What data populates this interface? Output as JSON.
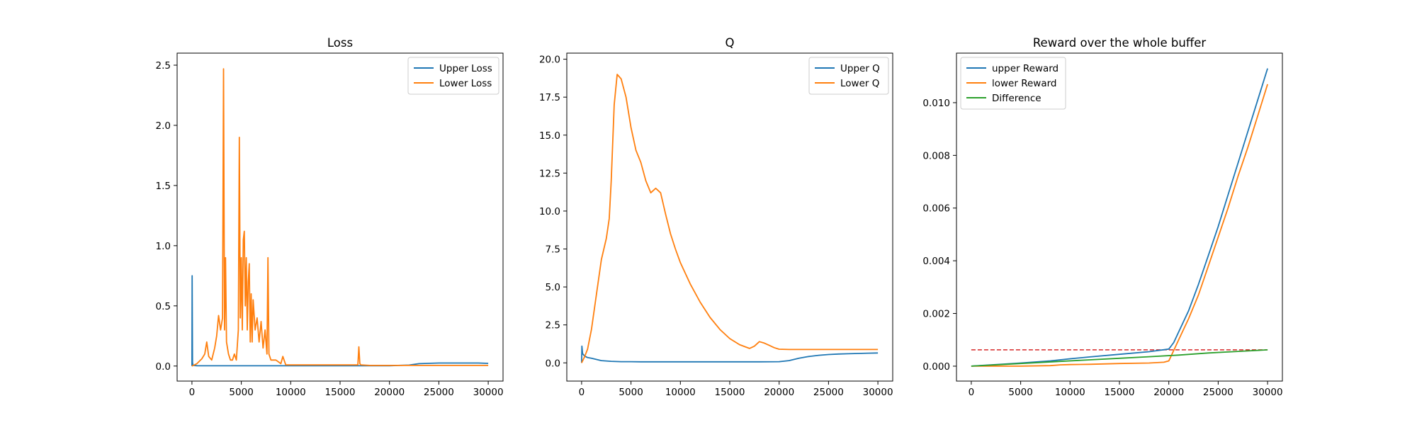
{
  "chart_data": [
    {
      "type": "line",
      "title": "Loss",
      "xlim": [
        -1500,
        31500
      ],
      "ylim": [
        -0.125,
        2.6
      ],
      "xticks": [
        0,
        5000,
        10000,
        15000,
        20000,
        25000,
        30000
      ],
      "yticks": [
        0.0,
        0.5,
        1.0,
        1.5,
        2.0,
        2.5
      ],
      "xtick_labels": [
        "0",
        "5000",
        "10000",
        "15000",
        "20000",
        "25000",
        "30000"
      ],
      "ytick_labels": [
        "0.0",
        "0.5",
        "1.0",
        "1.5",
        "2.0",
        "2.5"
      ],
      "grid": false,
      "legend_position": "upper right",
      "series": [
        {
          "name": "Upper Loss",
          "color": "#1f77b4",
          "x": [
            0,
            20,
            60,
            100,
            150,
            500,
            1000,
            5000,
            10000,
            15000,
            20000,
            22000,
            23000,
            25000,
            27000,
            29000,
            30000
          ],
          "y": [
            0.0,
            0.75,
            0.03,
            0.01,
            0.005,
            0.003,
            0.002,
            0.002,
            0.002,
            0.002,
            0.003,
            0.008,
            0.02,
            0.025,
            0.025,
            0.025,
            0.022
          ]
        },
        {
          "name": "Lower Loss",
          "color": "#ff7f0e",
          "x": [
            0,
            500,
            1000,
            1300,
            1500,
            1700,
            2000,
            2300,
            2500,
            2700,
            2900,
            3100,
            3200,
            3300,
            3400,
            3500,
            3700,
            3900,
            4100,
            4300,
            4500,
            4700,
            4800,
            4900,
            5000,
            5100,
            5200,
            5300,
            5400,
            5500,
            5600,
            5700,
            5800,
            5900,
            6000,
            6100,
            6200,
            6400,
            6600,
            6800,
            7000,
            7200,
            7400,
            7600,
            7700,
            7800,
            8000,
            8500,
            9000,
            9200,
            9500,
            10000,
            12000,
            14000,
            16000,
            16800,
            16900,
            17000,
            17100,
            18000,
            20000,
            22000,
            25000,
            30000
          ],
          "y": [
            0.0,
            0.02,
            0.06,
            0.1,
            0.2,
            0.08,
            0.05,
            0.15,
            0.25,
            0.42,
            0.3,
            0.4,
            2.47,
            0.3,
            0.9,
            0.2,
            0.1,
            0.05,
            0.05,
            0.1,
            0.05,
            0.3,
            1.9,
            0.4,
            0.9,
            0.3,
            1.05,
            1.12,
            0.5,
            0.9,
            0.3,
            0.7,
            0.85,
            0.2,
            0.6,
            0.2,
            0.55,
            0.3,
            0.4,
            0.2,
            0.37,
            0.15,
            0.3,
            0.1,
            0.9,
            0.1,
            0.05,
            0.05,
            0.02,
            0.08,
            0.01,
            0.01,
            0.01,
            0.01,
            0.01,
            0.01,
            0.16,
            0.02,
            0.01,
            0.005,
            0.005,
            0.005,
            0.005,
            0.005
          ]
        }
      ]
    },
    {
      "type": "line",
      "title": "Q",
      "xlim": [
        -1500,
        31500
      ],
      "ylim": [
        -1.2,
        20.4
      ],
      "xticks": [
        0,
        5000,
        10000,
        15000,
        20000,
        25000,
        30000
      ],
      "yticks": [
        0.0,
        2.5,
        5.0,
        7.5,
        10.0,
        12.5,
        15.0,
        17.5,
        20.0
      ],
      "xtick_labels": [
        "0",
        "5000",
        "10000",
        "15000",
        "20000",
        "25000",
        "30000"
      ],
      "ytick_labels": [
        "0.0",
        "2.5",
        "5.0",
        "7.5",
        "10.0",
        "12.5",
        "15.0",
        "17.5",
        "20.0"
      ],
      "grid": false,
      "legend_position": "upper right",
      "series": [
        {
          "name": "Upper Q",
          "color": "#1f77b4",
          "x": [
            0,
            30,
            100,
            300,
            600,
            1000,
            2000,
            3000,
            4000,
            5000,
            6000,
            8000,
            10000,
            12000,
            15000,
            18000,
            20000,
            21000,
            22000,
            23000,
            24000,
            25000,
            26000,
            27000,
            28000,
            29000,
            30000
          ],
          "y": [
            0.0,
            1.1,
            0.6,
            0.45,
            0.35,
            0.3,
            0.15,
            0.1,
            0.08,
            0.08,
            0.07,
            0.07,
            0.07,
            0.07,
            0.07,
            0.07,
            0.08,
            0.15,
            0.3,
            0.42,
            0.5,
            0.55,
            0.58,
            0.6,
            0.62,
            0.64,
            0.65
          ]
        },
        {
          "name": "Lower Q",
          "color": "#ff7f0e",
          "x": [
            0,
            300,
            600,
            1000,
            1500,
            2000,
            2500,
            2800,
            3000,
            3300,
            3600,
            4000,
            4500,
            5000,
            5500,
            6000,
            6500,
            7000,
            7500,
            8000,
            8500,
            9000,
            9500,
            10000,
            11000,
            12000,
            13000,
            14000,
            15000,
            16000,
            17000,
            17500,
            18000,
            18500,
            19000,
            19500,
            20000,
            21000,
            22000,
            25000,
            30000
          ],
          "y": [
            0.0,
            0.4,
            0.9,
            2.2,
            4.5,
            6.8,
            8.2,
            9.5,
            12.0,
            17.0,
            19.0,
            18.7,
            17.5,
            15.5,
            14.0,
            13.2,
            12.0,
            11.2,
            11.5,
            11.2,
            9.8,
            8.5,
            7.5,
            6.6,
            5.2,
            4.0,
            3.0,
            2.2,
            1.6,
            1.2,
            0.95,
            1.1,
            1.4,
            1.3,
            1.15,
            1.0,
            0.9,
            0.88,
            0.88,
            0.88,
            0.88
          ]
        }
      ]
    },
    {
      "type": "line",
      "title": "Reward over the whole buffer",
      "xlim": [
        -1500,
        31500
      ],
      "ylim": [
        -0.000566,
        0.01188
      ],
      "xticks": [
        0,
        5000,
        10000,
        15000,
        20000,
        25000,
        30000
      ],
      "yticks": [
        0.0,
        0.002,
        0.004,
        0.006,
        0.008,
        0.01
      ],
      "xtick_labels": [
        "0",
        "5000",
        "10000",
        "15000",
        "20000",
        "25000",
        "30000"
      ],
      "ytick_labels": [
        "0.000",
        "0.002",
        "0.004",
        "0.006",
        "0.008",
        "0.010"
      ],
      "grid": false,
      "legend_position": "upper left",
      "hline": {
        "y": 0.00062,
        "color": "#d62728",
        "style": "dashed",
        "x_from": 0,
        "x_to": 30000
      },
      "series": [
        {
          "name": "upper Reward",
          "color": "#1f77b4",
          "x": [
            0,
            2000,
            5000,
            8000,
            10000,
            12000,
            15000,
            18000,
            20000,
            20500,
            21000,
            22000,
            23000,
            24000,
            25000,
            26000,
            27000,
            28000,
            29000,
            30000
          ],
          "y": [
            0.0,
            5e-05,
            0.00012,
            0.0002,
            0.00028,
            0.00035,
            0.00045,
            0.00055,
            0.00065,
            0.0009,
            0.0013,
            0.0021,
            0.0031,
            0.0042,
            0.0053,
            0.0065,
            0.0077,
            0.0089,
            0.0101,
            0.0113
          ]
        },
        {
          "name": "lower Reward",
          "color": "#ff7f0e",
          "x": [
            0,
            2000,
            5000,
            8000,
            9000,
            10000,
            12000,
            15000,
            18000,
            19500,
            20000,
            20500,
            21000,
            22000,
            23000,
            24000,
            25000,
            26000,
            27000,
            28000,
            29000,
            30000
          ],
          "y": [
            0.0,
            0.0,
            0.0,
            2e-05,
            5e-05,
            6e-05,
            7e-05,
            0.0001,
            0.00012,
            0.00015,
            0.0002,
            0.0006,
            0.001,
            0.0018,
            0.0027,
            0.0038,
            0.0049,
            0.006,
            0.0072,
            0.0083,
            0.0095,
            0.0107
          ]
        },
        {
          "name": "Difference",
          "color": "#2ca02c",
          "x": [
            0,
            3000,
            6000,
            9000,
            12000,
            15000,
            18000,
            21000,
            24000,
            27000,
            30000
          ],
          "y": [
            0.0,
            6e-05,
            0.00012,
            0.00018,
            0.00024,
            0.0003,
            0.00036,
            0.00042,
            0.0005,
            0.00056,
            0.00062
          ]
        }
      ]
    }
  ]
}
